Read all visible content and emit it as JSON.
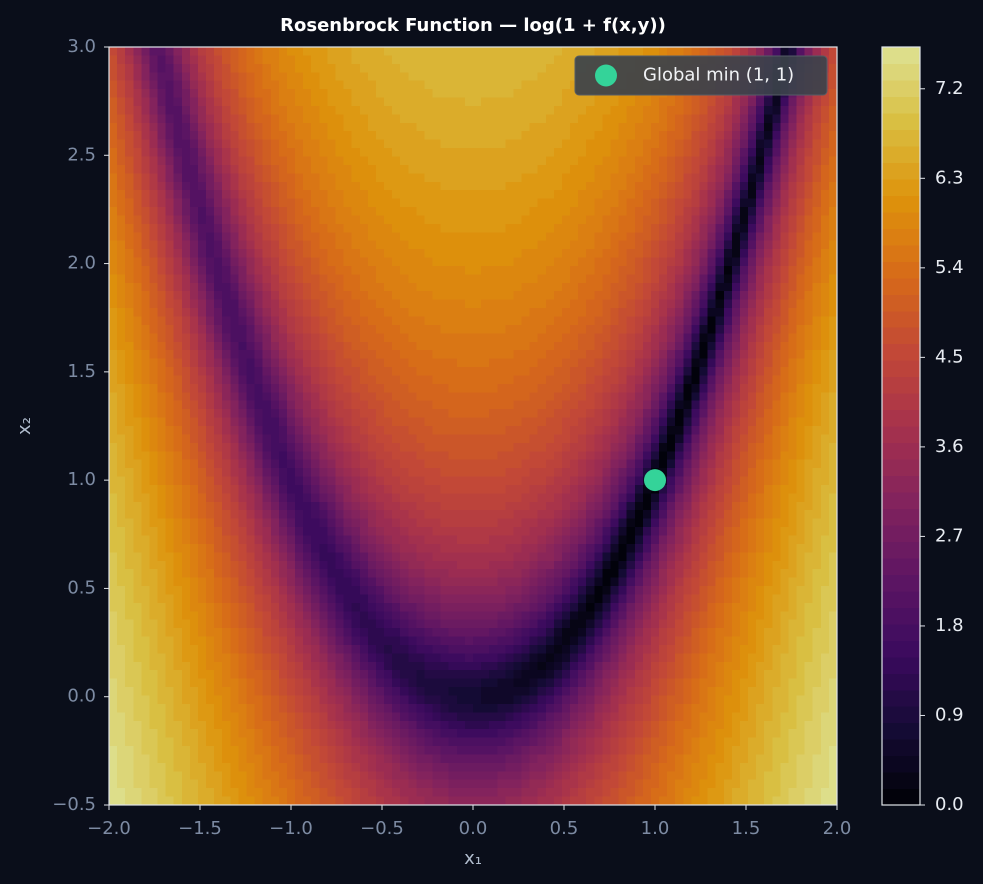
{
  "chart_data": {
    "type": "heatmap",
    "title": "Rosenbrock Function — log(1 + f(x,y))",
    "x_label": "x₁",
    "y_label": "x₂",
    "colormap": "inferno",
    "xlim": [
      -2,
      2
    ],
    "xticks": [
      {
        "value": -2,
        "label": "−2.0"
      },
      {
        "value": -1.5,
        "label": "−1.5"
      },
      {
        "value": -1,
        "label": "−1.0"
      },
      {
        "value": -0.5,
        "label": "−0.5"
      },
      {
        "value": 0,
        "label": "0.0"
      },
      0.5,
      {
        "value": 1,
        "label": "1.0"
      },
      1.5,
      {
        "value": 2,
        "label": "2.0"
      }
    ],
    "ylim": [
      -0.5,
      3
    ],
    "yticks": [
      {
        "value": -0.5,
        "label": "−0.5"
      },
      {
        "value": 0,
        "label": "0.0"
      },
      0.5,
      {
        "value": 1,
        "label": "1.0"
      },
      1.5,
      {
        "value": 2,
        "label": "2.0"
      },
      2.5,
      {
        "value": 3,
        "label": "3.0"
      }
    ],
    "colorbar": {
      "lim": [
        0,
        7.62
      ],
      "ticks": [
        {
          "value": 0,
          "label": "0.0"
        },
        0.9,
        1.8,
        2.7,
        3.6,
        4.5,
        5.4,
        6.3,
        7.2
      ]
    },
    "series": [
      {
        "type": "scatter",
        "name": "Global min (1, 1)",
        "color": "#34d399",
        "x": [
          1
        ],
        "y": [
          1
        ]
      }
    ],
    "legend": "upper right"
  }
}
